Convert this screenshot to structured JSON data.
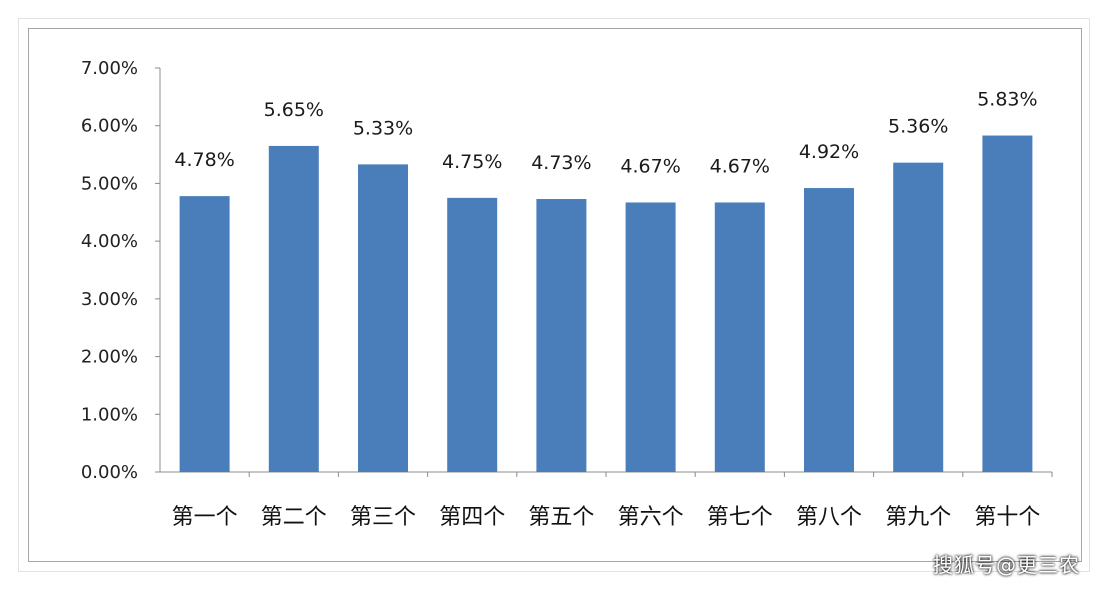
{
  "chart_data": {
    "type": "bar",
    "title": "",
    "xlabel": "",
    "ylabel": "",
    "categories": [
      "第一个",
      "第二个",
      "第三个",
      "第四个",
      "第五个",
      "第六个",
      "第七个",
      "第八个",
      "第九个",
      "第十个"
    ],
    "values": [
      4.78,
      5.65,
      5.33,
      4.75,
      4.73,
      4.67,
      4.67,
      4.92,
      5.36,
      5.83
    ],
    "value_labels": [
      "4.78%",
      "5.65%",
      "5.33%",
      "4.75%",
      "4.73%",
      "4.67%",
      "4.67%",
      "4.92%",
      "5.36%",
      "5.83%"
    ],
    "ylim": [
      0,
      7
    ],
    "yticks": [
      0,
      1,
      2,
      3,
      4,
      5,
      6,
      7
    ],
    "ytick_labels": [
      "0.00%",
      "1.00%",
      "2.00%",
      "3.00%",
      "4.00%",
      "5.00%",
      "6.00%",
      "7.00%"
    ],
    "grid": false,
    "legend": "none",
    "bar_color": "#4a7ebb"
  },
  "watermark": "搜狐号@更三农"
}
